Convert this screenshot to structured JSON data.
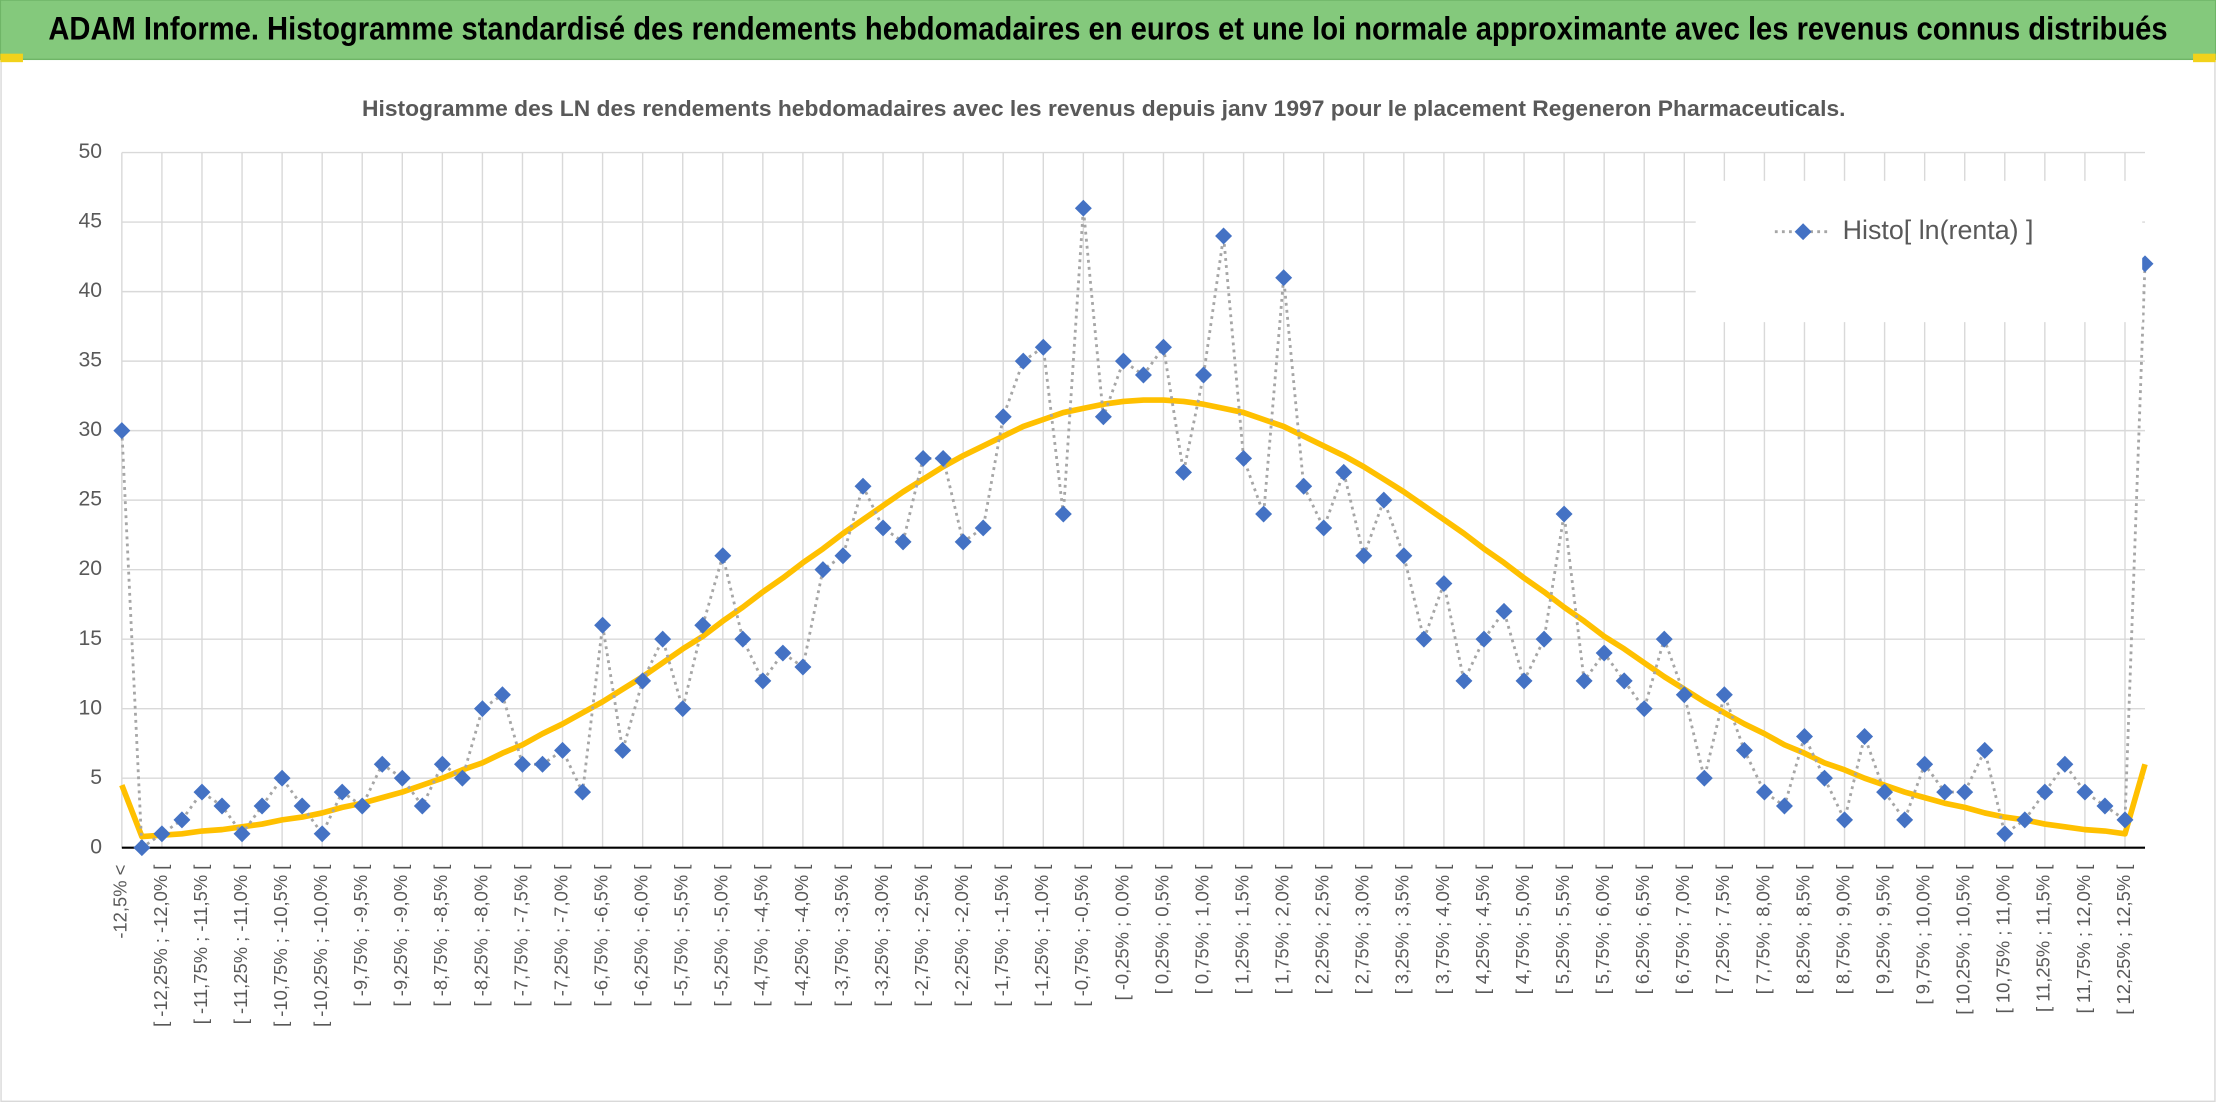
{
  "chart_data": {
    "type": "line",
    "title": "ADAM Informe. Histogramme standardisé des rendements hebdomadaires en euros et une loi normale approximante avec les revenus connus distribués",
    "subtitle": "Histogramme des LN des rendements hebdomadaires avec les revenus depuis janv 1997 pour le placement Regeneron Pharmaceuticals.",
    "categories": [
      "-12,5% <",
      null,
      "[ -12,25% ; -12,0% [",
      null,
      "[ -11,75% ; -11,5% [",
      null,
      "[ -11,25% ; -11,0% [",
      null,
      "[ -10,75% ; -10,5% [",
      null,
      "[ -10,25% ; -10,0% [",
      null,
      "[ -9,75% ; -9,5% [",
      null,
      "[ -9,25% ; -9,0% [",
      null,
      "[ -8,75% ; -8,5% [",
      null,
      "[ -8,25% ; -8,0% [",
      null,
      "[ -7,75% ; -7,5% [",
      null,
      "[ -7,25% ; -7,0% [",
      null,
      "[ -6,75% ; -6,5% [",
      null,
      "[ -6,25% ; -6,0% [",
      null,
      "[ -5,75% ; -5,5% [",
      null,
      "[ -5,25% ; -5,0% [",
      null,
      "[ -4,75% ; -4,5% [",
      null,
      "[ -4,25% ; -4,0% [",
      null,
      "[ -3,75% ; -3,5% [",
      null,
      "[ -3,25% ; -3,0% [",
      null,
      "[ -2,75% ; -2,5% [",
      null,
      "[ -2,25% ; -2,0% [",
      null,
      "[ -1,75% ; -1,5% [",
      null,
      "[ -1,25% ; -1,0% [",
      null,
      "[ -0,75% ; -0,5% [",
      null,
      "[ -0,25% ; 0,0% [",
      null,
      "[ 0,25% ; 0,5% [",
      null,
      "[ 0,75% ; 1,0% [",
      null,
      "[ 1,25% ; 1,5% [",
      null,
      "[ 1,75% ; 2,0% [",
      null,
      "[ 2,25% ; 2,5% [",
      null,
      "[ 2,75% ; 3,0% [",
      null,
      "[ 3,25% ; 3,5% [",
      null,
      "[ 3,75% ; 4,0% [",
      null,
      "[ 4,25% ; 4,5% [",
      null,
      "[ 4,75% ; 5,0% [",
      null,
      "[ 5,25% ; 5,5% [",
      null,
      "[ 5,75% ; 6,0% [",
      null,
      "[ 6,25% ; 6,5% [",
      null,
      "[ 6,75% ; 7,0% [",
      null,
      "[ 7,25% ; 7,5% [",
      null,
      "[ 7,75% ; 8,0% [",
      null,
      "[ 8,25% ; 8,5% [",
      null,
      "[ 8,75% ; 9,0% [",
      null,
      "[ 9,25% ; 9,5% [",
      null,
      "[ 9,75% ; 10,0% [",
      null,
      "[ 10,25% ; 10,5% [",
      null,
      "[ 10,75% ; 11,0% [",
      null,
      "[ 11,25% ; 11,5% [",
      null,
      "[ 11,75% ; 12,0% [",
      null,
      "[ 12,25% ; 12,5% [",
      null
    ],
    "series": [
      {
        "name": "Histo[ ln(renta) ]",
        "color": "#4472c4",
        "line_color": "#a6a6a6",
        "line_style": "dotted",
        "marker": "diamond",
        "values": [
          30,
          0,
          1,
          2,
          4,
          3,
          1,
          3,
          5,
          3,
          1,
          4,
          3,
          6,
          5,
          3,
          6,
          5,
          10,
          11,
          6,
          6,
          7,
          4,
          16,
          7,
          12,
          15,
          10,
          16,
          21,
          15,
          12,
          14,
          13,
          20,
          21,
          26,
          23,
          22,
          28,
          28,
          22,
          23,
          31,
          35,
          36,
          24,
          46,
          31,
          35,
          34,
          36,
          27,
          34,
          44,
          28,
          24,
          41,
          26,
          23,
          27,
          21,
          25,
          21,
          15,
          19,
          12,
          15,
          17,
          12,
          15,
          24,
          12,
          14,
          12,
          10,
          15,
          11,
          5,
          11,
          7,
          4,
          3,
          8,
          5,
          2,
          8,
          4,
          2,
          6,
          4,
          4,
          7,
          1,
          2,
          4,
          6,
          4,
          3,
          2,
          42
        ]
      },
      {
        "color": "#ffc000",
        "line_style": "solid",
        "marker": "none",
        "values": [
          4.5,
          0.8,
          0.9,
          1.0,
          1.2,
          1.3,
          1.5,
          1.7,
          2.0,
          2.2,
          2.5,
          2.9,
          3.2,
          3.6,
          4.0,
          4.5,
          5.0,
          5.6,
          6.1,
          6.8,
          7.4,
          8.2,
          8.9,
          9.7,
          10.5,
          11.4,
          12.3,
          13.3,
          14.3,
          15.2,
          16.3,
          17.3,
          18.4,
          19.4,
          20.5,
          21.5,
          22.6,
          23.6,
          24.6,
          25.6,
          26.5,
          27.4,
          28.2,
          28.9,
          29.6,
          30.3,
          30.8,
          31.3,
          31.6,
          31.9,
          32.1,
          32.2,
          32.2,
          32.1,
          31.9,
          31.6,
          31.3,
          30.8,
          30.3,
          29.6,
          28.9,
          28.2,
          27.4,
          26.5,
          25.6,
          24.6,
          23.6,
          22.6,
          21.5,
          20.5,
          19.4,
          18.4,
          17.3,
          16.3,
          15.2,
          14.3,
          13.3,
          12.3,
          11.4,
          10.5,
          9.7,
          8.9,
          8.2,
          7.4,
          6.8,
          6.1,
          5.6,
          5.0,
          4.5,
          4.0,
          3.6,
          3.2,
          2.9,
          2.5,
          2.2,
          2.0,
          1.7,
          1.5,
          1.3,
          1.2,
          1.0,
          6.0
        ]
      }
    ],
    "ylim": [
      0,
      50
    ],
    "yticks": [
      0,
      5,
      10,
      15,
      20,
      25,
      30,
      35,
      40,
      45,
      50
    ],
    "grid": true,
    "legend": "top-right"
  }
}
